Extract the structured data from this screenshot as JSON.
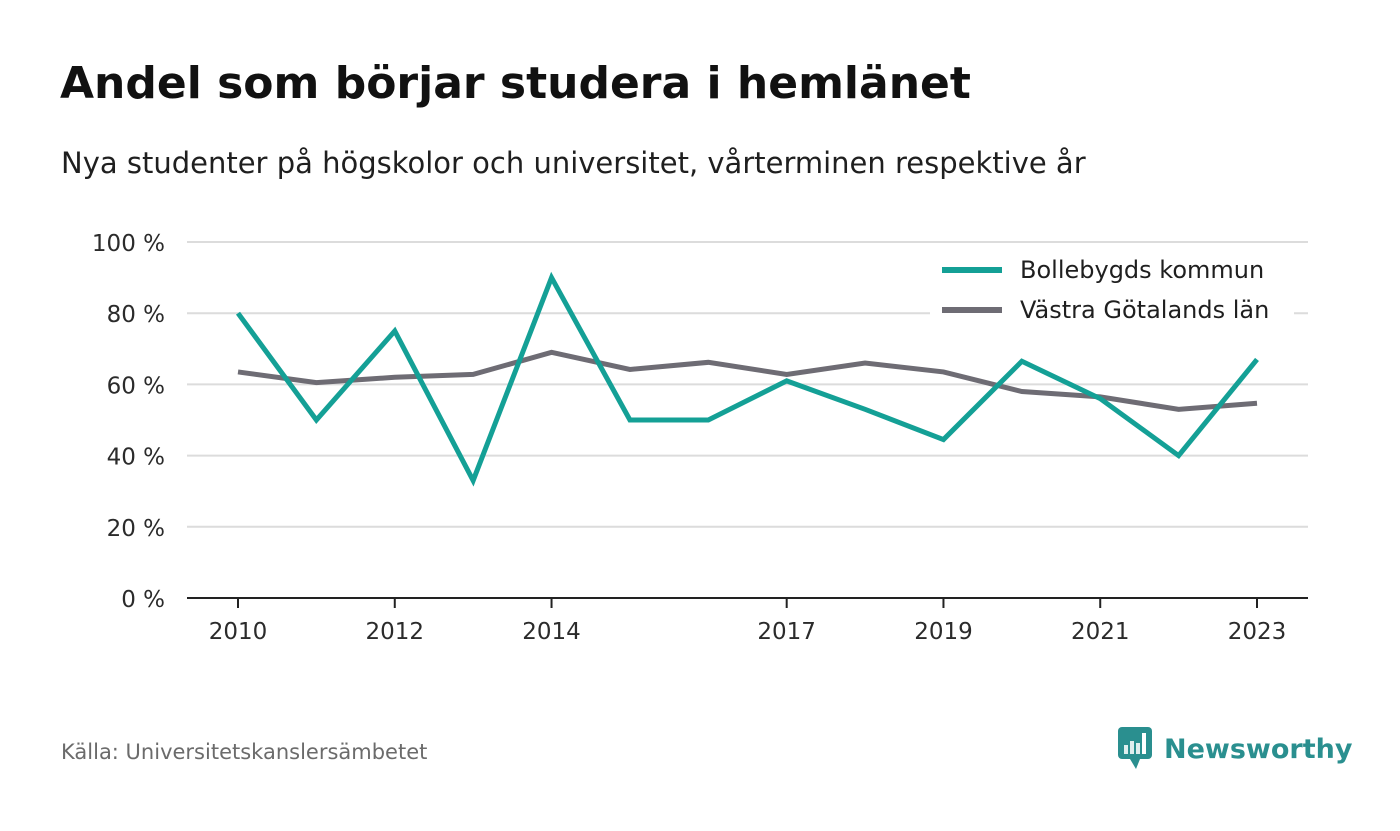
{
  "title": "Andel som börjar studera i hemlänet",
  "subtitle": "Nya studenter på högskolor och universitet, vårterminen respektive år",
  "source": "Källa: Universitetskanslersämbetet",
  "brand": {
    "name": "Newsworthy",
    "icon": "newsworthy-logo-icon",
    "color": "#2a8f8f"
  },
  "chart_data": {
    "type": "line",
    "x": [
      2010,
      2011,
      2012,
      2013,
      2014,
      2015,
      2016,
      2017,
      2018,
      2019,
      2020,
      2021,
      2022,
      2023
    ],
    "x_tick_labels": [
      "2010",
      "2012",
      "2014",
      "2017",
      "2019",
      "2021",
      "2023"
    ],
    "x_tick_values": [
      2010,
      2012,
      2014,
      2017,
      2019,
      2021,
      2023
    ],
    "y_ticks": [
      0,
      20,
      40,
      60,
      80,
      100
    ],
    "y_tick_labels": [
      "0 %",
      "20 %",
      "40 %",
      "60 %",
      "80 %",
      "100 %"
    ],
    "ylim": [
      0,
      100
    ],
    "grid": true,
    "legend_position": "top-right",
    "series": [
      {
        "name": "Bollebygds kommun",
        "color": "#14a096",
        "values": [
          80,
          50,
          75,
          33,
          90,
          50,
          50,
          61,
          53,
          44.5,
          66.5,
          56,
          40,
          67
        ]
      },
      {
        "name": "Västra Götalands län",
        "color": "#6e6c74",
        "values": [
          63.5,
          60.5,
          62,
          62.8,
          69,
          64.2,
          66.2,
          62.8,
          66,
          63.5,
          58,
          56.5,
          53,
          54.7
        ]
      }
    ]
  }
}
